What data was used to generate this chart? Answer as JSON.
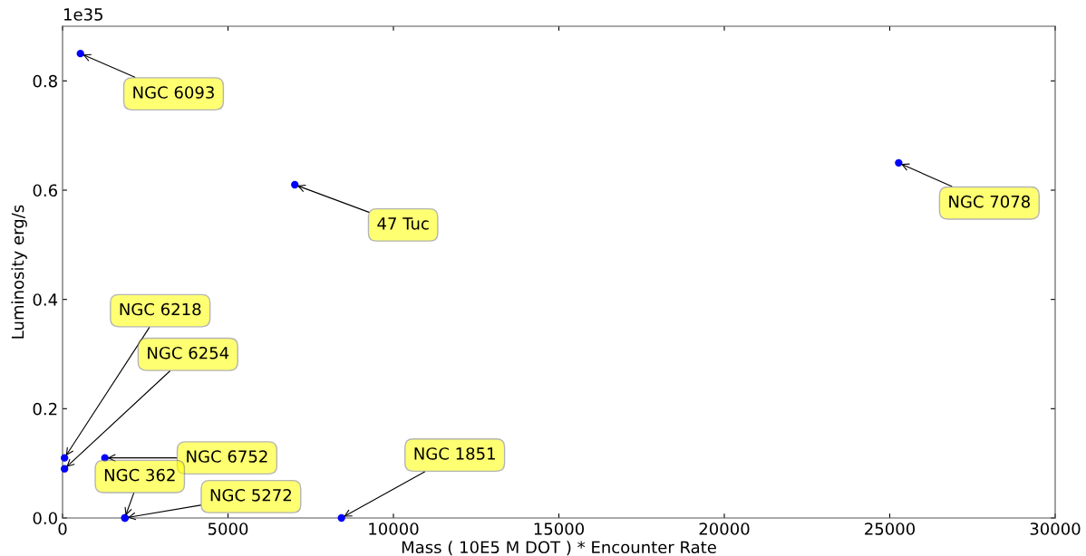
{
  "chart_data": {
    "type": "scatter",
    "xlabel": "Mass ( 10E5 M DOT ) * Encounter Rate",
    "ylabel": "Luminosity erg/s",
    "x": [
      540,
      7020,
      25270,
      60,
      60,
      1280,
      1880,
      1890,
      8430
    ],
    "series": [
      {
        "color": "#0000ff",
        "values": [
          0.85,
          0.61,
          0.65,
          0.11,
          0.09,
          0.11,
          0,
          0,
          0
        ]
      }
    ],
    "marker": "circle",
    "grid": false,
    "xlim": [
      0,
      30000
    ],
    "xticks": [
      0,
      5000,
      10000,
      15000,
      20000,
      25000,
      30000
    ],
    "ylim": [
      0,
      0.9
    ],
    "yticks": [
      {
        "value": 0,
        "label": "0.0"
      },
      0.2,
      0.4,
      0.6,
      0.8
    ],
    "annotations": [
      "1e35",
      {
        "text": "NGC 6093",
        "x": 540,
        "y": 0.85
      },
      {
        "text": "47 Tuc",
        "x": 7020,
        "y": 0.61
      },
      {
        "text": "NGC 7078",
        "x": 25270,
        "y": 0.65
      },
      {
        "text": "NGC 6218",
        "x": 60,
        "y": 0.11
      },
      {
        "text": "NGC 6254",
        "x": 60,
        "y": 0.09
      },
      {
        "text": "NGC 6752",
        "x": 1280,
        "y": 0.11
      },
      {
        "text": "NGC 362",
        "x": 1880,
        "y": 0
      },
      {
        "text": "NGC 5272",
        "x": 1890,
        "y": 0
      },
      {
        "text": "NGC 1851",
        "x": 8430,
        "y": 0
      }
    ]
  }
}
